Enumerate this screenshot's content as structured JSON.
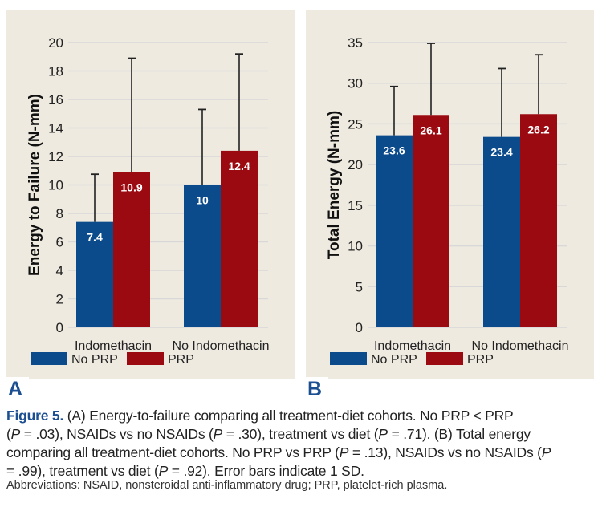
{
  "colors": {
    "no_prp": "#0b4a8b",
    "prp": "#9b0a10",
    "background": "#eeeae0",
    "grid": "#d8d8d8",
    "accent": "#1c4f91"
  },
  "chart_data": [
    {
      "type": "bar",
      "panel": "A",
      "title": "",
      "xlabel": "",
      "ylabel": "Energy to Failure (N-mm)",
      "categories": [
        "Indomethacin",
        "No Indomethacin"
      ],
      "series": [
        {
          "name": "No PRP",
          "values": [
            7.4,
            10
          ],
          "error_upper": [
            10.75,
            15.3
          ],
          "labels": [
            "7.4",
            "10"
          ]
        },
        {
          "name": "PRP",
          "values": [
            10.9,
            12.4
          ],
          "error_upper": [
            18.9,
            19.2
          ],
          "labels": [
            "10.9",
            "12.4"
          ]
        }
      ],
      "ylim": [
        0,
        20
      ],
      "yticks": [
        0,
        2,
        4,
        6,
        8,
        10,
        12,
        14,
        16,
        18,
        20
      ],
      "grid": true,
      "legend": "bottom-left"
    },
    {
      "type": "bar",
      "panel": "B",
      "title": "",
      "xlabel": "",
      "ylabel": "Total Energy (N-mm)",
      "categories": [
        "Indomethacin",
        "No Indomethacin"
      ],
      "series": [
        {
          "name": "No PRP",
          "values": [
            23.6,
            23.4
          ],
          "error_upper": [
            29.6,
            31.8
          ],
          "labels": [
            "23.6",
            "23.4"
          ]
        },
        {
          "name": "PRP",
          "values": [
            26.1,
            26.2
          ],
          "error_upper": [
            34.9,
            33.5
          ],
          "labels": [
            "26.1",
            "26.2"
          ]
        }
      ],
      "ylim": [
        0,
        35
      ],
      "yticks": [
        0,
        5,
        10,
        15,
        20,
        25,
        30,
        35
      ],
      "grid": true,
      "legend": "bottom-left"
    }
  ],
  "panels": {
    "a_letter": "A",
    "b_letter": "B"
  },
  "caption": {
    "figure_label": "Figure 5.",
    "line1": " (A) Energy-to-failure comparing all treatment-diet cohorts. No PRP < PRP",
    "line2_parts": [
      "(",
      "P",
      " = .03), NSAIDs vs no NSAIDs (",
      "P",
      " = .30), treatment vs diet (",
      "P",
      " = .71). (B) Total energy"
    ],
    "line3_parts": [
      "comparing all treatment-diet cohorts. No PRP vs PRP (",
      "P",
      " = .13), NSAIDs vs no NSAIDs (",
      "P"
    ],
    "line4_parts": [
      "= .99), treatment vs diet (",
      "P",
      " = .92). Error bars indicate 1 SD."
    ],
    "abbreviations": "Abbreviations: NSAID, nonsteroidal anti-inflammatory drug; PRP, platelet-rich plasma."
  }
}
